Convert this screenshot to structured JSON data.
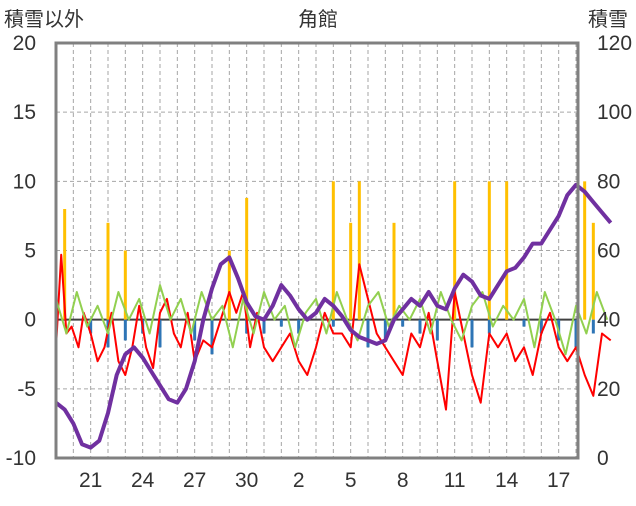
{
  "chart_data": {
    "type": "line",
    "title": "角館",
    "left_axis_label": "積雪以外",
    "right_axis_label": "積雪",
    "y_left": {
      "min": -10,
      "max": 20,
      "ticks": [
        "20",
        "15",
        "10",
        "5",
        "0",
        "-5",
        "-10"
      ]
    },
    "y_right": {
      "min": 0,
      "max": 120,
      "ticks": [
        "120",
        "100",
        "80",
        "60",
        "40",
        "20",
        "0"
      ]
    },
    "x_tick_labels": [
      "21",
      "24",
      "27",
      "30",
      "2",
      "5",
      "8",
      "11",
      "14",
      "17"
    ],
    "grid": {
      "vertical_dashed": true,
      "horizontal_dashed": true
    },
    "colors": {
      "frame": "#808080",
      "grid": "#a6a6a6",
      "zero_line": "#404040",
      "temperature": "#ff0000",
      "temp_anomaly": "#92d050",
      "sunshine": "#ffc000",
      "precip_anomaly": "#2e75b6",
      "snow_depth": "#7030a0"
    },
    "series": [
      {
        "axis": "left",
        "x": [
          19.0,
          19.3,
          19.6,
          19.9,
          20.3,
          20.6,
          21.0,
          21.4,
          21.8,
          22.2,
          22.6,
          23.0,
          23.4,
          23.8,
          24.2,
          24.6,
          25.0,
          25.4,
          25.8,
          26.2,
          26.6,
          27.0,
          27.5,
          28.0,
          28.5,
          29.0,
          29.4,
          29.8,
          30.2,
          30.6,
          31.0,
          31.5,
          32.0,
          32.5,
          33.0,
          33.5,
          34.0,
          34.5,
          35.0,
          35.5,
          36.0,
          36.5,
          37.0,
          37.5,
          38.0,
          38.5,
          39.0,
          39.5,
          40.0,
          40.5,
          41.0,
          41.5,
          42.0,
          42.5,
          43.0,
          43.5,
          44.0,
          44.5,
          45.0,
          45.5,
          46.0,
          46.5,
          47.0,
          47.5,
          48.0,
          48.5,
          49.0,
          49.5,
          50.0,
          50.5,
          51.0
        ],
        "y": [
          -2,
          4.7,
          -1,
          -0.5,
          -2,
          0.5,
          -1,
          -3,
          -2,
          0.5,
          -3,
          -4,
          -2,
          1,
          -2,
          -3.5,
          0.5,
          1.5,
          -1,
          -2,
          0.5,
          -3,
          -1.5,
          -2,
          0,
          2,
          0.5,
          2,
          -2,
          0.5,
          -2,
          -3,
          -2,
          -1,
          -3,
          -4,
          -2,
          0.5,
          -1,
          -1,
          -2,
          4,
          1.5,
          -1,
          -2,
          -3,
          -4,
          -1,
          -2,
          0.5,
          -3,
          -6.5,
          2,
          -1,
          -4,
          -6,
          -1,
          -2,
          -1,
          -3,
          -2,
          -4,
          -1,
          0.5,
          -2,
          -3,
          -2,
          -4,
          -5.5,
          -1,
          -1.5
        ]
      },
      {
        "axis": "left",
        "x": [
          19.0,
          19.6,
          20.2,
          20.8,
          21.4,
          22.0,
          22.6,
          23.2,
          23.8,
          24.4,
          25.0,
          25.6,
          26.2,
          26.8,
          27.4,
          28.0,
          28.6,
          29.2,
          29.8,
          30.4,
          31.0,
          31.6,
          32.2,
          32.8,
          33.4,
          34.0,
          34.6,
          35.2,
          35.8,
          36.4,
          37.0,
          37.6,
          38.2,
          38.8,
          39.4,
          40.0,
          40.6,
          41.2,
          41.8,
          42.4,
          43.0,
          43.6,
          44.2,
          44.8,
          45.4,
          46.0,
          46.6,
          47.2,
          47.8,
          48.4,
          49.0,
          49.6,
          50.2,
          50.8
        ],
        "y": [
          1.5,
          -1,
          2,
          -0.5,
          1,
          -1,
          2,
          0,
          1.5,
          -1,
          2.5,
          0,
          1.5,
          -1,
          2,
          0,
          1,
          -2,
          1.5,
          -1,
          2,
          0,
          1,
          -2,
          0.5,
          1.5,
          -1,
          2,
          0,
          -1.5,
          1,
          2,
          -0.5,
          1,
          0,
          1.5,
          -1,
          2,
          0,
          -1.5,
          1,
          2,
          -0.5,
          1,
          0,
          1.5,
          -2,
          2,
          0,
          -2.5,
          1,
          -1,
          2,
          0
        ]
      },
      {
        "axis": "left",
        "type": "bar",
        "x": [
          19.5,
          22.0,
          23.0,
          29.0,
          30.0,
          35.0,
          36.0,
          36.5,
          38.5,
          42.0,
          44.0,
          45.0,
          49.5,
          50.0
        ],
        "y": [
          8,
          7,
          5,
          5,
          8.8,
          10,
          7,
          10,
          7,
          10,
          10,
          10,
          10,
          7
        ]
      },
      {
        "axis": "left",
        "type": "bar",
        "x": [
          21.0,
          22.0,
          23.0,
          24.0,
          25.0,
          27.0,
          28.0,
          30.0,
          31.0,
          32.0,
          33.0,
          35.0,
          37.0,
          38.0,
          39.0,
          40.0,
          41.0,
          43.0,
          44.0,
          46.0,
          47.0,
          48.0,
          49.0,
          50.0
        ],
        "y": [
          -1,
          -2,
          -1.5,
          -1,
          -2,
          -1.5,
          -2.5,
          -1,
          -1,
          -0.5,
          -1,
          -0.5,
          -2,
          -1.5,
          -0.5,
          -1,
          -1.5,
          -2,
          -1,
          -0.5,
          -1,
          -1.5,
          -2,
          -1
        ]
      },
      {
        "axis": "right",
        "x": [
          19.0,
          19.5,
          20.0,
          20.5,
          21.0,
          21.5,
          22.0,
          22.5,
          23.0,
          23.5,
          24.0,
          24.5,
          25.0,
          25.5,
          26.0,
          26.5,
          27.0,
          27.5,
          28.0,
          28.5,
          29.0,
          29.5,
          30.0,
          30.5,
          31.0,
          31.5,
          32.0,
          32.5,
          33.0,
          33.5,
          34.0,
          34.5,
          35.0,
          35.5,
          36.0,
          36.5,
          37.0,
          37.5,
          38.0,
          38.5,
          39.0,
          39.5,
          40.0,
          40.5,
          41.0,
          41.5,
          42.0,
          42.5,
          43.0,
          43.5,
          44.0,
          44.5,
          45.0,
          45.5,
          46.0,
          46.5,
          47.0,
          47.5,
          48.0,
          48.5,
          49.0,
          49.5,
          50.0,
          50.5,
          51.0
        ],
        "y": [
          16,
          14,
          10,
          4,
          3,
          5,
          13,
          24,
          30,
          32,
          29,
          25,
          21,
          17,
          16,
          20,
          28,
          40,
          49,
          56,
          58,
          52,
          45,
          41,
          40,
          44,
          50,
          47,
          43,
          40,
          42,
          46,
          44,
          41,
          37,
          35,
          34,
          33,
          34,
          40,
          43,
          46,
          44,
          48,
          44,
          43,
          49,
          53,
          51,
          47,
          46,
          50,
          54,
          55,
          58,
          62,
          62,
          66,
          70,
          76,
          79,
          77,
          74,
          71,
          68
        ]
      }
    ]
  }
}
